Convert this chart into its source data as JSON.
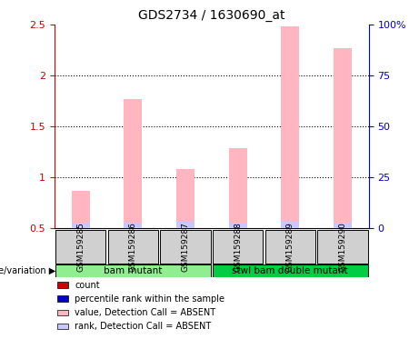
{
  "title": "GDS2734 / 1630690_at",
  "samples": [
    "GSM159285",
    "GSM159286",
    "GSM159287",
    "GSM159288",
    "GSM159289",
    "GSM159290"
  ],
  "pink_bars": [
    0.87,
    1.77,
    1.08,
    1.29,
    2.48,
    2.27
  ],
  "blue_bars": [
    0.055,
    0.06,
    0.065,
    0.06,
    0.065,
    0.06
  ],
  "ylim_left": [
    0.5,
    2.5
  ],
  "ylim_right": [
    0,
    100
  ],
  "yticks_left": [
    0.5,
    1.0,
    1.5,
    2.0,
    2.5
  ],
  "yticks_right": [
    0,
    25,
    50,
    75,
    100
  ],
  "ytick_labels_left": [
    "0.5",
    "1",
    "1.5",
    "2",
    "2.5"
  ],
  "ytick_labels_right": [
    "0",
    "25",
    "50",
    "75",
    "100%"
  ],
  "groups": [
    {
      "label": "bam mutant",
      "samples": [
        0,
        1,
        2
      ],
      "color": "#90ee90"
    },
    {
      "label": "stwl bam double mutant",
      "samples": [
        3,
        4,
        5
      ],
      "color": "#00cc44"
    }
  ],
  "group_label": "genotype/variation",
  "legend": [
    {
      "label": "count",
      "color": "#cc0000",
      "style": "square"
    },
    {
      "label": "percentile rank within the sample",
      "color": "#0000cc",
      "style": "square"
    },
    {
      "label": "value, Detection Call = ABSENT",
      "color": "#ffb6c1",
      "style": "square"
    },
    {
      "label": "rank, Detection Call = ABSENT",
      "color": "#c8c8ff",
      "style": "square"
    }
  ],
  "bar_width": 0.35,
  "bg_color": "#f0f0f0",
  "plot_bg": "#ffffff",
  "left_axis_color": "#cc0000",
  "right_axis_color": "#0000cc"
}
